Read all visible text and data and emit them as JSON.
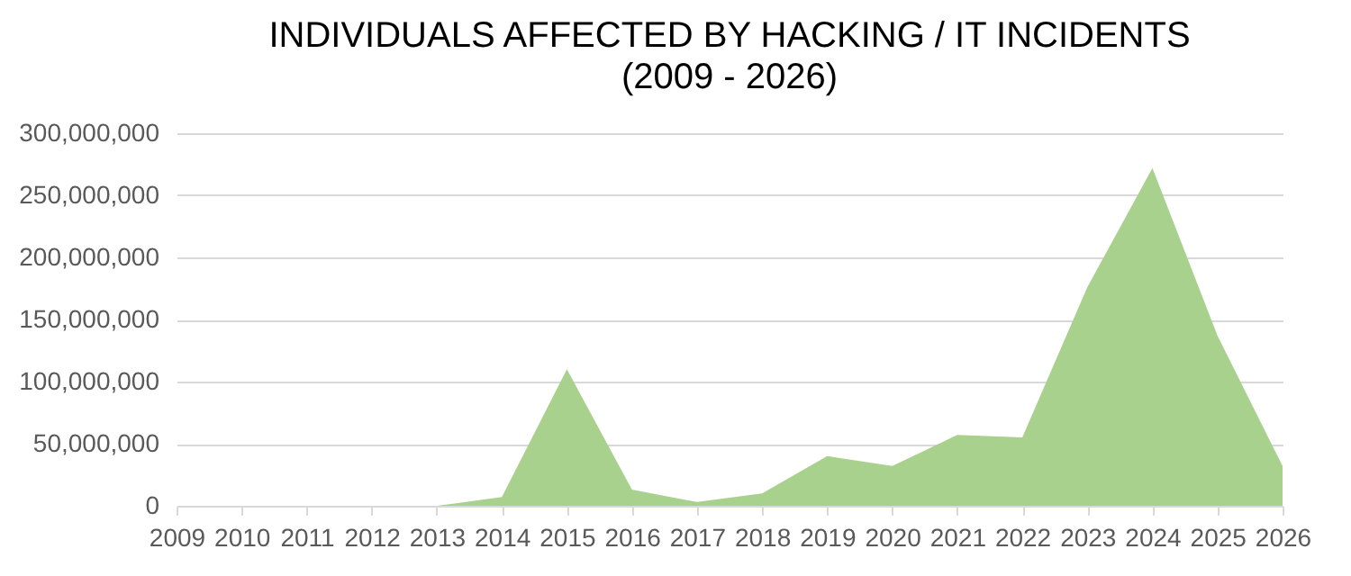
{
  "chart_data": {
    "type": "area",
    "title": "INDIVIDUALS AFFECTED BY HACKING / IT INCIDENTS",
    "subtitle": "(2009 - 2026)",
    "categories": [
      "2009",
      "2010",
      "2011",
      "2012",
      "2013",
      "2014",
      "2015",
      "2016",
      "2017",
      "2018",
      "2019",
      "2020",
      "2021",
      "2022",
      "2023",
      "2024",
      "2025",
      "2026"
    ],
    "values": [
      0,
      0,
      0,
      0,
      0,
      7000000,
      110000000,
      13000000,
      3000000,
      10000000,
      40000000,
      32000000,
      57000000,
      55000000,
      176000000,
      272000000,
      137000000,
      32000000
    ],
    "color": "#a9d18e",
    "ylim": [
      0,
      300000000
    ],
    "yticks": [
      0,
      {
        "value": 50000000,
        "label": "50,000,000"
      },
      {
        "value": 100000000,
        "label": "100,000,000"
      },
      {
        "value": 150000000,
        "label": "150,000,000"
      },
      {
        "value": 200000000,
        "label": "200,000,000"
      },
      {
        "value": 250000000,
        "label": "250,000,000"
      },
      {
        "value": 300000000,
        "label": "300,000,000"
      }
    ],
    "grid": "y"
  }
}
